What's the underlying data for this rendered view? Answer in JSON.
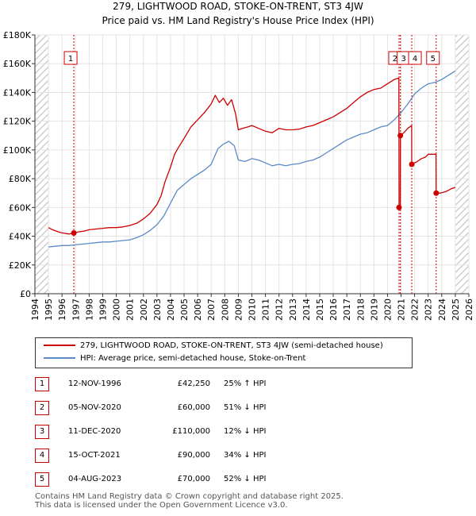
{
  "title": "279, LIGHTWOOD ROAD, STOKE-ON-TRENT, ST3 4JW",
  "subtitle": "Price paid vs. HM Land Registry's House Price Index (HPI)",
  "colors": {
    "property": "#cc0000",
    "hpi": "#5b8ac6",
    "marker_line": "#cc0000",
    "hatch": "#c8c8c8"
  },
  "chart_data": {
    "type": "line",
    "title": "279, LIGHTWOOD ROAD, STOKE-ON-TRENT, ST3 4JW",
    "subtitle": "Price paid vs. HM Land Registry's House Price Index (HPI)",
    "xlim": [
      1994,
      2026
    ],
    "ylim": [
      0,
      180000
    ],
    "x_ticks": [
      1994,
      1995,
      1996,
      1997,
      1998,
      1999,
      2000,
      2001,
      2002,
      2003,
      2004,
      2005,
      2006,
      2007,
      2008,
      2009,
      2010,
      2011,
      2012,
      2013,
      2014,
      2015,
      2016,
      2017,
      2018,
      2019,
      2020,
      2021,
      2022,
      2023,
      2024,
      2025,
      2026
    ],
    "y_ticks": [
      0,
      20000,
      40000,
      60000,
      80000,
      100000,
      120000,
      140000,
      160000,
      180000
    ],
    "y_tick_labels": [
      "£0",
      "£20K",
      "£40K",
      "£60K",
      "£80K",
      "£100K",
      "£120K",
      "£140K",
      "£160K",
      "£180K"
    ],
    "grid": true,
    "legend_position": "bottom",
    "series": [
      {
        "name": "279, LIGHTWOOD ROAD, STOKE-ON-TRENT, ST3 4JW (semi-detached house)",
        "color": "#cc0000",
        "x": [
          1995.0,
          1995.3,
          1995.6,
          1995.9,
          1996.2,
          1996.5,
          1996.87,
          1997.2,
          1997.6,
          1998.0,
          1998.5,
          1999.0,
          1999.5,
          2000.0,
          2000.5,
          2001.0,
          2001.5,
          2002.0,
          2002.5,
          2003.0,
          2003.3,
          2003.6,
          2004.0,
          2004.3,
          2004.6,
          2005.0,
          2005.5,
          2006.0,
          2006.5,
          2007.0,
          2007.3,
          2007.6,
          2007.9,
          2008.2,
          2008.5,
          2008.8,
          2009.0,
          2009.3,
          2009.7,
          2010.0,
          2010.5,
          2011.0,
          2011.5,
          2012.0,
          2012.5,
          2013.0,
          2013.5,
          2014.0,
          2014.5,
          2015.0,
          2015.5,
          2016.0,
          2016.5,
          2017.0,
          2017.5,
          2018.0,
          2018.5,
          2019.0,
          2019.5,
          2020.0,
          2020.5,
          2020.84,
          2020.85,
          2020.94,
          2020.95,
          2021.2,
          2021.5,
          2021.78,
          2021.79,
          2022.2,
          2022.5,
          2022.8,
          2023.0,
          2023.3,
          2023.58,
          2023.59,
          2023.9,
          2024.3,
          2024.7,
          2025.0
        ],
        "y": [
          46000,
          44500,
          43500,
          42500,
          42000,
          41500,
          42250,
          43000,
          43500,
          44500,
          45000,
          45500,
          46000,
          46000,
          46500,
          47500,
          49000,
          52000,
          56000,
          62000,
          68000,
          78000,
          88000,
          97000,
          102000,
          108000,
          116000,
          121000,
          126000,
          132000,
          138000,
          133000,
          136000,
          131000,
          135000,
          125000,
          114000,
          115000,
          116000,
          117000,
          115000,
          113000,
          112000,
          115000,
          114000,
          114000,
          114500,
          116000,
          117000,
          119000,
          121000,
          123000,
          126000,
          129000,
          133000,
          137000,
          140000,
          142000,
          143000,
          146000,
          149000,
          150000,
          60000,
          60000,
          110000,
          112000,
          115000,
          117000,
          90000,
          92000,
          94000,
          95000,
          97000,
          97000,
          97000,
          70000,
          70000,
          71000,
          73000,
          74000
        ],
        "points": [
          {
            "x": 1996.87,
            "y": 42250,
            "label": "1"
          },
          {
            "x": 2020.85,
            "y": 60000,
            "label": "2"
          },
          {
            "x": 2020.95,
            "y": 110000,
            "label": "3"
          },
          {
            "x": 2021.79,
            "y": 90000,
            "label": "4"
          },
          {
            "x": 2023.59,
            "y": 70000,
            "label": "5"
          }
        ]
      },
      {
        "name": "HPI: Average price, semi-detached house, Stoke-on-Trent",
        "color": "#5b8ac6",
        "x": [
          1995.0,
          1995.5,
          1996.0,
          1996.5,
          1997.0,
          1997.5,
          1998.0,
          1998.5,
          1999.0,
          1999.5,
          2000.0,
          2000.5,
          2001.0,
          2001.5,
          2002.0,
          2002.5,
          2003.0,
          2003.5,
          2004.0,
          2004.5,
          2005.0,
          2005.5,
          2006.0,
          2006.5,
          2007.0,
          2007.5,
          2007.9,
          2008.3,
          2008.7,
          2009.0,
          2009.5,
          2010.0,
          2010.5,
          2011.0,
          2011.5,
          2012.0,
          2012.5,
          2013.0,
          2013.5,
          2014.0,
          2014.5,
          2015.0,
          2015.5,
          2016.0,
          2016.5,
          2017.0,
          2017.5,
          2018.0,
          2018.5,
          2019.0,
          2019.5,
          2020.0,
          2020.5,
          2021.0,
          2021.5,
          2022.0,
          2022.5,
          2023.0,
          2023.5,
          2024.0,
          2024.5,
          2025.0
        ],
        "y": [
          32500,
          33000,
          33500,
          33500,
          34000,
          34500,
          35000,
          35500,
          36000,
          36000,
          36500,
          37000,
          37500,
          39000,
          41000,
          44000,
          48000,
          54000,
          63000,
          72000,
          76000,
          80000,
          83000,
          86000,
          90000,
          101000,
          104000,
          106000,
          103000,
          93000,
          92000,
          94000,
          93000,
          91000,
          89000,
          90000,
          89000,
          90000,
          90500,
          92000,
          93000,
          95000,
          98000,
          101000,
          104000,
          107000,
          109000,
          111000,
          112000,
          114000,
          116000,
          117000,
          121000,
          126000,
          132000,
          139000,
          143000,
          146000,
          147000,
          149000,
          152000,
          155000
        ]
      }
    ],
    "markers": [
      {
        "label": "1",
        "x": 1996.87
      },
      {
        "label": "2",
        "x": 2020.85
      },
      {
        "label": "3",
        "x": 2020.95
      },
      {
        "label": "4",
        "x": 2021.79
      },
      {
        "label": "5",
        "x": 2023.59
      }
    ]
  },
  "legend": {
    "property": "279, LIGHTWOOD ROAD, STOKE-ON-TRENT, ST3 4JW (semi-detached house)",
    "hpi": "HPI: Average price, semi-detached house, Stoke-on-Trent"
  },
  "transactions": [
    {
      "label": "1",
      "date": "12-NOV-1996",
      "price": "£42,250",
      "hpi": "25% ↑ HPI"
    },
    {
      "label": "2",
      "date": "05-NOV-2020",
      "price": "£60,000",
      "hpi": "51% ↓ HPI"
    },
    {
      "label": "3",
      "date": "11-DEC-2020",
      "price": "£110,000",
      "hpi": "12% ↓ HPI"
    },
    {
      "label": "4",
      "date": "15-OCT-2021",
      "price": "£90,000",
      "hpi": "34% ↓ HPI"
    },
    {
      "label": "5",
      "date": "04-AUG-2023",
      "price": "£70,000",
      "hpi": "52% ↓ HPI"
    }
  ],
  "footer": {
    "line1": "Contains HM Land Registry data © Crown copyright and database right 2025.",
    "line2": "This data is licensed under the Open Government Licence v3.0."
  }
}
